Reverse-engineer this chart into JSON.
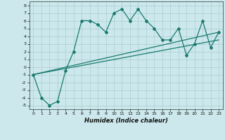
{
  "title": "",
  "xlabel": "Humidex (Indice chaleur)",
  "ylabel": "",
  "bg_color": "#cce8ec",
  "line_color": "#1a7a6e",
  "grid_color": "#a8cdd2",
  "xlim": [
    -0.5,
    23.5
  ],
  "ylim": [
    -5.5,
    8.5
  ],
  "xticks": [
    0,
    1,
    2,
    3,
    4,
    5,
    6,
    7,
    8,
    9,
    10,
    11,
    12,
    13,
    14,
    15,
    16,
    17,
    18,
    19,
    20,
    21,
    22,
    23
  ],
  "yticks": [
    -5,
    -4,
    -3,
    -2,
    -1,
    0,
    1,
    2,
    3,
    4,
    5,
    6,
    7,
    8
  ],
  "series1_x": [
    0,
    1,
    2,
    3,
    4,
    5,
    6,
    7,
    8,
    9,
    10,
    11,
    12,
    13,
    14,
    15,
    16,
    17,
    18,
    19,
    20,
    21,
    22,
    23
  ],
  "series1_y": [
    -1,
    -4,
    -5,
    -4.5,
    -0.5,
    2,
    6,
    6,
    5.5,
    4.5,
    7,
    7.5,
    6,
    7.5,
    6,
    5,
    3.5,
    3.5,
    5,
    1.5,
    3,
    6,
    2.5,
    4.5
  ],
  "series2_x": [
    0,
    23
  ],
  "series2_y": [
    -1,
    4.5
  ],
  "series3_x": [
    0,
    23
  ],
  "series3_y": [
    -1,
    3.5
  ],
  "marker": "D",
  "markersize": 2.0,
  "linewidth": 0.9,
  "tick_fontsize": 4.5,
  "xlabel_fontsize": 6.0
}
